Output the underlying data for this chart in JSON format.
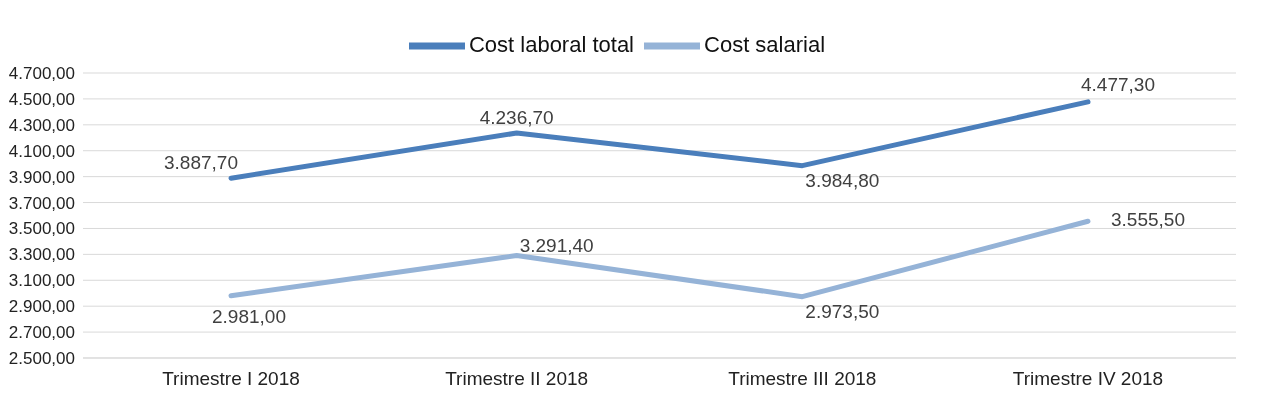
{
  "chart_data": {
    "type": "line",
    "categories": [
      "Trimestre I 2018",
      "Trimestre II 2018",
      "Trimestre III 2018",
      "Trimestre IV 2018"
    ],
    "series": [
      {
        "name": "Cost laboral total",
        "color": "#4a7ebb",
        "values": [
          3887.7,
          4236.7,
          3984.8,
          4477.3
        ],
        "value_labels": [
          "3.887,70",
          "4.236,70",
          "3.984,80",
          "4.477,30"
        ]
      },
      {
        "name": "Cost salarial",
        "color": "#95b3d7",
        "values": [
          2981.0,
          3291.4,
          2973.5,
          3555.5
        ],
        "value_labels": [
          "2.981,00",
          "3.291,40",
          "2.973,50",
          "3.555,50"
        ]
      }
    ],
    "ylim": [
      2500,
      4700
    ],
    "yticks": [
      {
        "value": 2500,
        "label": "2.500,00"
      },
      {
        "value": 2700,
        "label": "2.700,00"
      },
      {
        "value": 2900,
        "label": "2.900,00"
      },
      {
        "value": 3100,
        "label": "3.100,00"
      },
      {
        "value": 3300,
        "label": "3.300,00"
      },
      {
        "value": 3500,
        "label": "3.500,00"
      },
      {
        "value": 3700,
        "label": "3.700,00"
      },
      {
        "value": 3900,
        "label": "3.900,00"
      },
      {
        "value": 4100,
        "label": "4.100,00"
      },
      {
        "value": 4300,
        "label": "4.300,00"
      },
      {
        "value": 4500,
        "label": "4.500,00"
      },
      {
        "value": 4700,
        "label": "4.700,00"
      }
    ],
    "grid": "y",
    "legend": "top",
    "marker": "none",
    "line_style": "solid"
  }
}
